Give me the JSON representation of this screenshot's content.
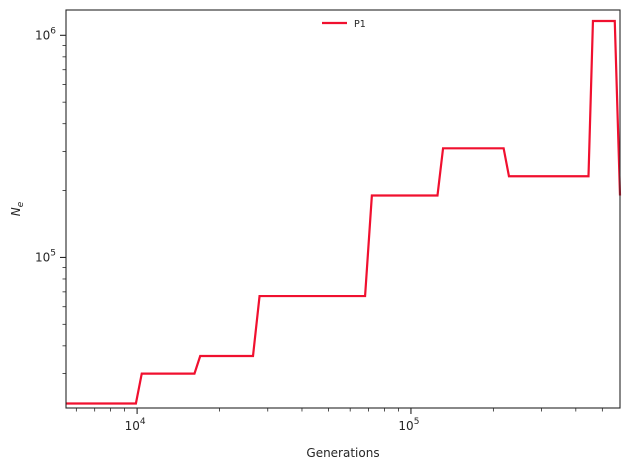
{
  "chart_data": {
    "type": "line",
    "xlabel": "Generations",
    "ylabel_base": "N",
    "ylabel_sub": "e",
    "xscale": "log",
    "yscale": "log",
    "xlim": [
      5500,
      580000
    ],
    "ylim": [
      21000,
      1300000
    ],
    "grid": false,
    "legend_position": "top-center",
    "x_ticks": [
      {
        "value": 10000,
        "base": "10",
        "exp": "4"
      },
      {
        "value": 100000,
        "base": "10",
        "exp": "5"
      }
    ],
    "y_ticks": [
      {
        "value": 100000,
        "base": "10",
        "exp": "5"
      },
      {
        "value": 1000000,
        "base": "10",
        "exp": "6"
      }
    ],
    "series": [
      {
        "name": "P1",
        "color": "#f0102f",
        "x": [
          5500,
          9900,
          10400,
          16200,
          17000,
          26500,
          28000,
          68000,
          72000,
          125000,
          131000,
          218000,
          228000,
          445000,
          462000,
          555000,
          580000
        ],
        "y": [
          22000,
          22000,
          30000,
          30000,
          36000,
          36000,
          67000,
          67000,
          190000,
          190000,
          310000,
          310000,
          232000,
          232000,
          1160000,
          1160000,
          190000
        ]
      }
    ]
  }
}
